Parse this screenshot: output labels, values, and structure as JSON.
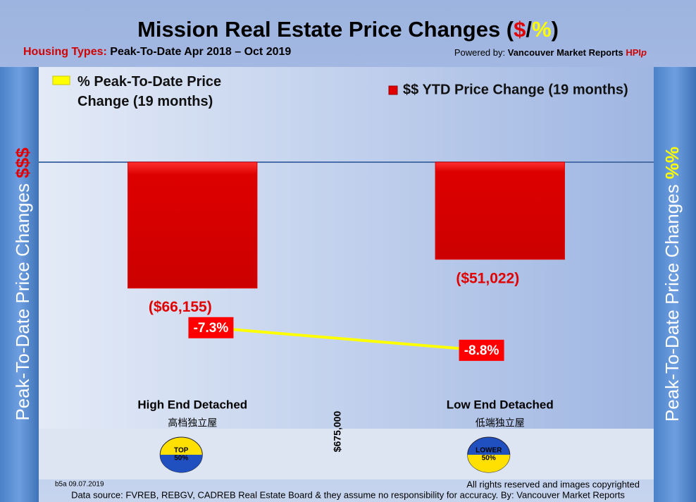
{
  "chart_data": {
    "type": "bar",
    "title_parts": [
      "Mission Real Estate Price Changes (",
      "$",
      "/",
      "%",
      ")"
    ],
    "subtitle_label": "Housing Types:",
    "subtitle": "Peak-To-Date Apr 2018 – Oct 2019",
    "powered_label": "Powered by:",
    "powered": "Vancouver Market Reports",
    "powered_brand": "HPI",
    "powered_brand_suffix": "p",
    "left_axis_title": "Peak-To-Date Price Changes",
    "left_axis_symbol": "$$$",
    "right_axis_title": "Peak-To-Date  Price  Changes",
    "right_axis_symbol": "%%",
    "categories": [
      "High End Detached",
      "Low End Detached"
    ],
    "category_subtitles": [
      "高档独立屋",
      "低端独立屋"
    ],
    "badges": [
      [
        "TOP",
        "50%"
      ],
      [
        "LOWER",
        "50%"
      ]
    ],
    "series": [
      {
        "name": "$$ YTD Price Change (19 months)",
        "color": "#e00000",
        "values": [
          -66155,
          -51022
        ],
        "value_labels": [
          "($66,155)",
          "($51,022)"
        ]
      },
      {
        "name": "% Peak-To-Date Price Change (19 months)",
        "color": "#ffff00",
        "type": "line",
        "axis": "y2",
        "values": [
          -7.3,
          -8.8
        ],
        "value_labels": [
          "-7.3%",
          "-8.8%"
        ]
      }
    ],
    "ylim": [
      -140000,
      50000
    ],
    "y2lim": [
      -14,
      10
    ],
    "annotation": "$675,000",
    "version": "b5a 09.07.2019",
    "copyright": "All rights reserved and  images copyrighted",
    "source": "Data source: FVREB, REBGV, CADREB Real Estate Board & they assume no responsibility for accuracy. By: Vancouver Market Reports"
  }
}
